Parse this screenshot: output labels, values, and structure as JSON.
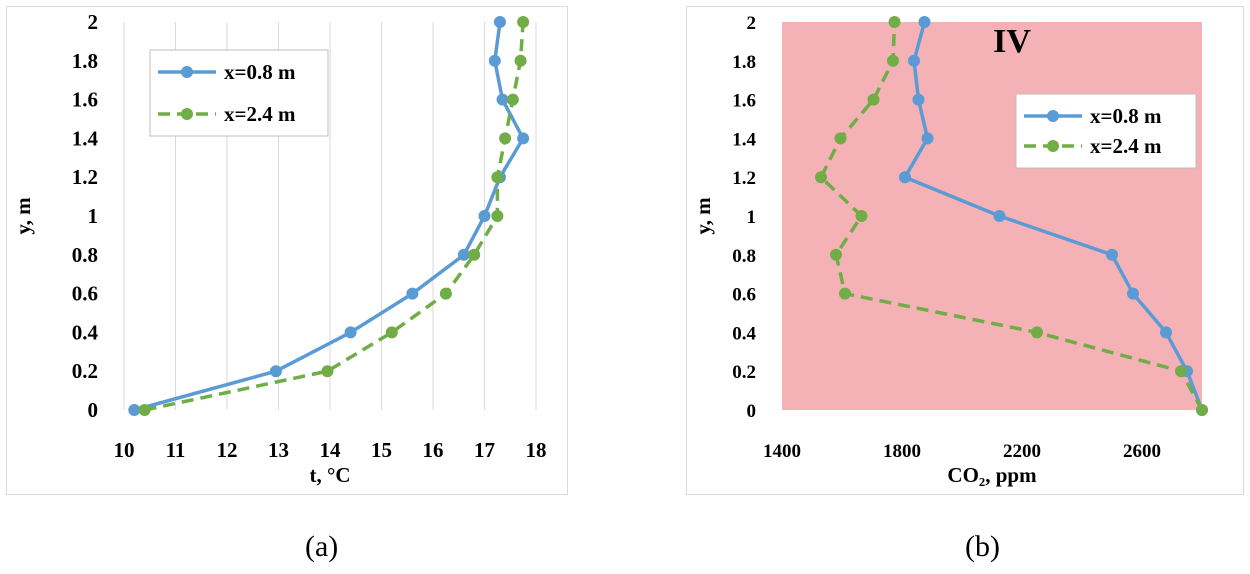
{
  "chart_data": [
    {
      "type": "line",
      "xlabel": "t, °C",
      "ylabel": "y, m",
      "xlim": [
        10,
        18
      ],
      "ylim": [
        0,
        2
      ],
      "xticks": [
        10,
        11,
        12,
        13,
        14,
        15,
        16,
        17,
        18
      ],
      "xtick_labels": [
        "10",
        "11",
        "12",
        "13",
        "14",
        "15",
        "16",
        "17",
        "18"
      ],
      "yticks": [
        0,
        0.2,
        0.4,
        0.6,
        0.8,
        1,
        1.2,
        1.4,
        1.6,
        1.8,
        2
      ],
      "ytick_labels": [
        "0",
        "0.2",
        "0.4",
        "0.6",
        "0.8",
        "1",
        "1.2",
        "1.4",
        "1.6",
        "1.8",
        "2"
      ],
      "grid": "vertical",
      "background": "#ffffff",
      "annotation": "",
      "legend_position": "top-left",
      "series": [
        {
          "name": "x=0.8 m",
          "color": "#5b9bd5",
          "dash": "solid",
          "points": [
            [
              10.2,
              0
            ],
            [
              12.95,
              0.2
            ],
            [
              14.4,
              0.4
            ],
            [
              15.6,
              0.6
            ],
            [
              16.6,
              0.8
            ],
            [
              17.0,
              1.0
            ],
            [
              17.3,
              1.2
            ],
            [
              17.75,
              1.4
            ],
            [
              17.35,
              1.6
            ],
            [
              17.2,
              1.8
            ],
            [
              17.3,
              2.0
            ]
          ]
        },
        {
          "name": "x=2.4 m",
          "color": "#70ad47",
          "dash": "dashed",
          "points": [
            [
              10.4,
              0
            ],
            [
              13.95,
              0.2
            ],
            [
              15.2,
              0.4
            ],
            [
              16.25,
              0.6
            ],
            [
              16.8,
              0.8
            ],
            [
              17.25,
              1.0
            ],
            [
              17.25,
              1.2
            ],
            [
              17.4,
              1.4
            ],
            [
              17.55,
              1.6
            ],
            [
              17.7,
              1.8
            ],
            [
              17.75,
              2.0
            ]
          ]
        }
      ]
    },
    {
      "type": "line",
      "xlabel": "CO₂, ppm",
      "ylabel": "y, m",
      "xlim": [
        1400,
        2800
      ],
      "ylim": [
        0,
        2
      ],
      "xticks": [
        1400,
        1800,
        2200,
        2600
      ],
      "xtick_labels": [
        "1400",
        "1800",
        "2200",
        "2600"
      ],
      "yticks": [
        0,
        0.2,
        0.4,
        0.6,
        0.8,
        1,
        1.2,
        1.4,
        1.6,
        1.8,
        2
      ],
      "ytick_labels": [
        "0",
        "0.2",
        "0.4",
        "0.6",
        "0.8",
        "1",
        "1.2",
        "1.4",
        "1.6",
        "1.8",
        "2"
      ],
      "grid": "none",
      "background": "#f4b2b6",
      "annotation": "IV",
      "legend_position": "right",
      "series": [
        {
          "name": "x=0.8 m",
          "color": "#5b9bd5",
          "dash": "solid",
          "points": [
            [
              2800,
              0
            ],
            [
              2750,
              0.2
            ],
            [
              2680,
              0.4
            ],
            [
              2570,
              0.6
            ],
            [
              2500,
              0.8
            ],
            [
              2125,
              1.0
            ],
            [
              1810,
              1.2
            ],
            [
              1885,
              1.4
            ],
            [
              1855,
              1.6
            ],
            [
              1840,
              1.8
            ],
            [
              1875,
              2.0
            ]
          ]
        },
        {
          "name": "x=2.4 m",
          "color": "#70ad47",
          "dash": "dashed",
          "points": [
            [
              2800,
              0
            ],
            [
              2730,
              0.2
            ],
            [
              2250,
              0.4
            ],
            [
              1610,
              0.6
            ],
            [
              1580,
              0.8
            ],
            [
              1665,
              1.0
            ],
            [
              1530,
              1.2
            ],
            [
              1595,
              1.4
            ],
            [
              1705,
              1.6
            ],
            [
              1770,
              1.8
            ],
            [
              1775,
              2.0
            ]
          ]
        }
      ]
    }
  ],
  "captions": {
    "a": "(a)",
    "b": "(b)"
  }
}
